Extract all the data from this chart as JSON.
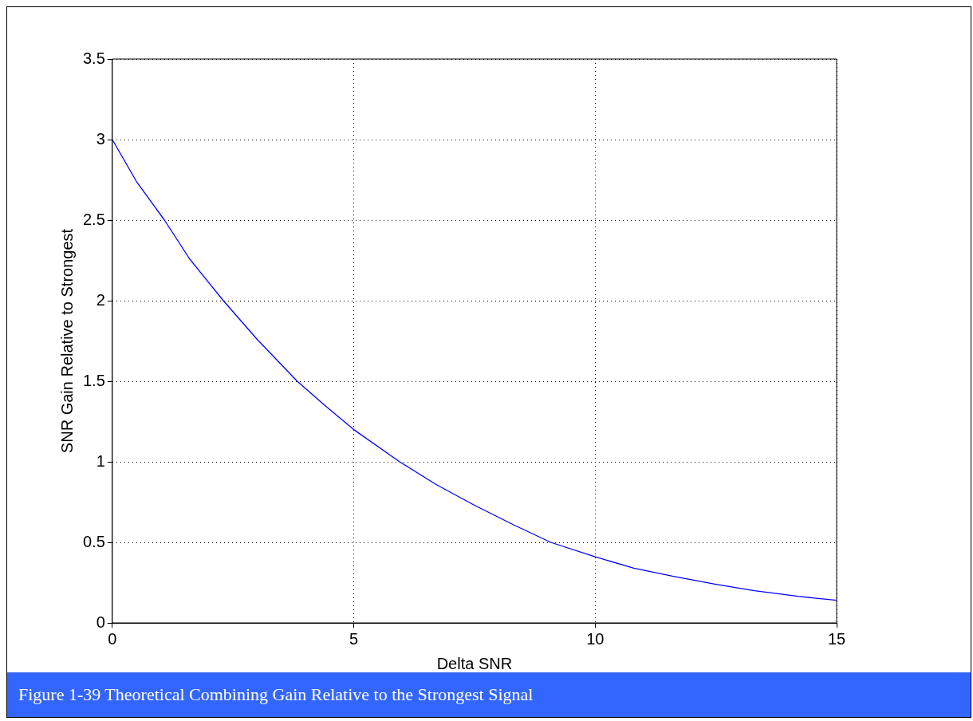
{
  "chart_data": {
    "type": "line",
    "xlabel": "Delta SNR",
    "ylabel": "SNR Gain Relative to Strongest",
    "x": [
      0,
      0.5,
      1.08,
      1.6,
      2.3,
      3,
      3.83,
      4.4,
      5,
      5.95,
      6.7,
      7.5,
      8.3,
      9.08,
      10,
      10.8,
      11.6,
      12.5,
      13.3,
      14.2,
      15
    ],
    "series": [
      {
        "color": "#0000ff",
        "values": [
          3,
          2.74,
          2.5,
          2.26,
          2,
          1.76,
          1.5,
          1.35,
          1.2,
          1,
          0.86,
          0.73,
          0.61,
          0.5,
          0.41,
          0.34,
          0.29,
          0.24,
          0.2,
          0.165,
          0.14
        ]
      }
    ],
    "xlim": [
      0,
      15
    ],
    "xticks": [
      0,
      5,
      10,
      15
    ],
    "ylim": [
      0,
      3.5
    ],
    "yticks": [
      0,
      0.5,
      1,
      1.5,
      2,
      2.5,
      3,
      3.5
    ],
    "grid": true,
    "legend": false,
    "marker": "none",
    "line_style": "solid",
    "annotations": [
      "Figure 1-39 Theoretical Combining Gain Relative to the Strongest Signal"
    ]
  }
}
